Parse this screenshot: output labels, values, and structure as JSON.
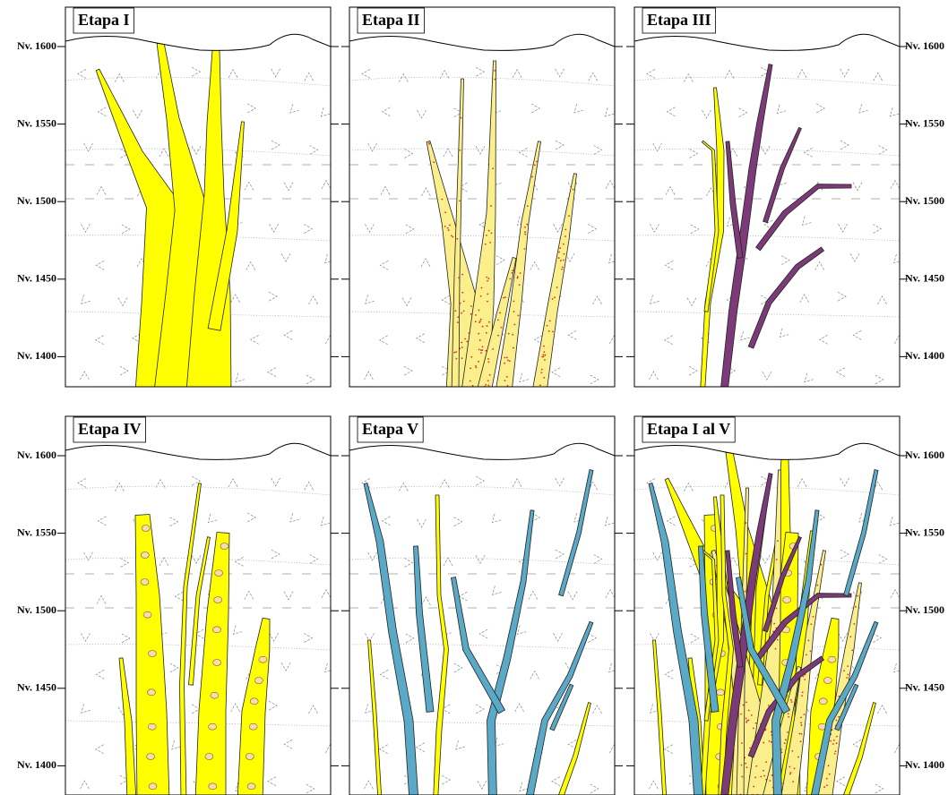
{
  "panels": [
    {
      "title": "Etapa I"
    },
    {
      "title": "Etapa II"
    },
    {
      "title": "Etapa III"
    },
    {
      "title": "Etapa IV"
    },
    {
      "title": "Etapa V"
    },
    {
      "title": "Etapa I al V"
    }
  ],
  "levels": [
    "Nv. 1600",
    "Nv. 1550",
    "Nv. 1500",
    "Nv. 1450",
    "Nv. 1400"
  ]
}
